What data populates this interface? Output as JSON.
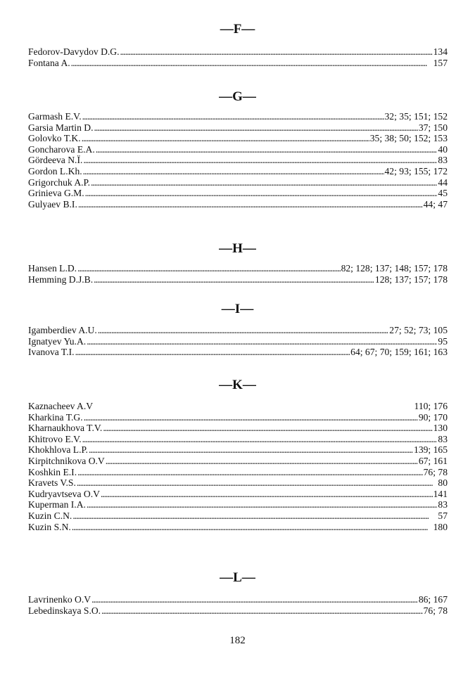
{
  "sections": [
    {
      "letter": "—F—",
      "entries": [
        {
          "name": "Fedorov-Davydov D.G.",
          "pages": "134"
        },
        {
          "name": "Fontana A.",
          "pages": "157"
        }
      ]
    },
    {
      "letter": "—G—",
      "entries": [
        {
          "name": "Garmash E.V.",
          "pages": "32; 35; 151; 152"
        },
        {
          "name": "Garsia Martin D.",
          "pages": "37; 150"
        },
        {
          "name": "Golovko T.K.",
          "pages": "35; 38; 50; 152; 153"
        },
        {
          "name": "Goncharova E.A.",
          "pages": "40"
        },
        {
          "name": "Gördeeva N.Ï.",
          "pages": "83"
        },
        {
          "name": "Gordon L.Kh.",
          "pages": "42; 93; 155; 172"
        },
        {
          "name": "Grigorchuk A.P.",
          "pages": "44"
        },
        {
          "name": "Grinieva G.M.",
          "pages": "45"
        },
        {
          "name": "Gulyaev B.I.",
          "pages": "44; 47"
        }
      ]
    },
    {
      "letter": "—H—",
      "entries": [
        {
          "name": "Hansen L.D.",
          "pages": "82; 128; 137; 148; 157; 178"
        },
        {
          "name": "Hemming D.J.B.",
          "pages": "128; 137; 157; 178"
        }
      ]
    },
    {
      "letter": "—I—",
      "entries": [
        {
          "name": "Igamberdiev A.U.",
          "pages": "27; 52; 73; 105"
        },
        {
          "name": "Ignatyev Yu.A.",
          "pages": "95"
        },
        {
          "name": "Ivanova T.I.",
          "pages": "64; 67; 70; 159; 161; 163"
        }
      ]
    },
    {
      "letter": "—K—",
      "entries": [
        {
          "name": "Kaznacheev A.V",
          "pages": "110; 176",
          "no_leader": true
        },
        {
          "name": "Kharkina T.G.",
          "pages": "90; 170"
        },
        {
          "name": "Kharnaukhova T.V.",
          "pages": "130"
        },
        {
          "name": "Khitrovo E.V.",
          "pages": "83"
        },
        {
          "name": "Khokhlova L.P.",
          "pages": "139; 165"
        },
        {
          "name": "Kirpitchnikova O.V",
          "pages": "67; 161"
        },
        {
          "name": "Koshkin E.I.",
          "pages": "76; 78"
        },
        {
          "name": "Kravets V.S.",
          "pages": "80"
        },
        {
          "name": "Kudryavtseva O.V",
          "pages": "141"
        },
        {
          "name": "Kuperman I.A.",
          "pages": "83"
        },
        {
          "name": "Kuzin C.N.",
          "pages": "57"
        },
        {
          "name": "Kuzin S.N.",
          "pages": "180"
        }
      ]
    },
    {
      "letter": "—L—",
      "entries": [
        {
          "name": "Lavrinenko O.V",
          "pages": "86; 167"
        },
        {
          "name": "Lebedinskaya S.O.",
          "pages": "76; 78"
        }
      ]
    }
  ],
  "page_number": "182"
}
